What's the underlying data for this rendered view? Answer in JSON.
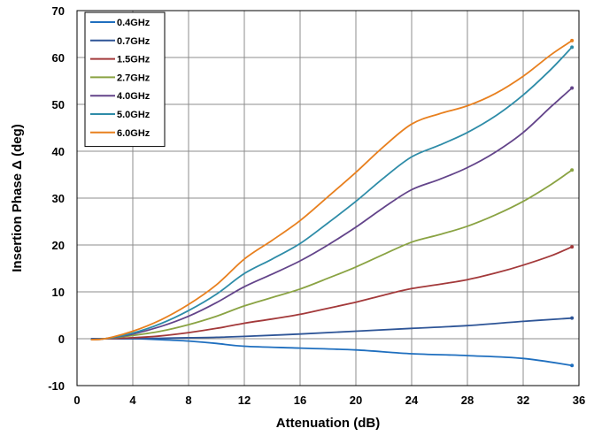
{
  "chart_data": {
    "type": "line",
    "xlabel": "Attenuation  (dB)",
    "ylabel": "Insertion Phase Δ (deg)",
    "xlim": [
      0,
      36
    ],
    "ylim": [
      -10,
      70
    ],
    "xticks": [
      0,
      4,
      8,
      12,
      16,
      20,
      24,
      28,
      32,
      36
    ],
    "yticks": [
      -10,
      0,
      10,
      20,
      30,
      40,
      50,
      60,
      70
    ],
    "xtick_labels": [
      "0",
      "4",
      "8",
      "12",
      "16",
      "20",
      "24",
      "28",
      "32",
      "36"
    ],
    "ytick_labels": [
      "-10",
      "0",
      "10",
      "20",
      "30",
      "40",
      "50",
      "60",
      "70"
    ],
    "grid": true,
    "legend_position": "top-left",
    "series": [
      {
        "name": "0.4GHz",
        "color": "#1f6fbf",
        "x": [
          1,
          2,
          4,
          6,
          8,
          10,
          12,
          16,
          20,
          24,
          28,
          32,
          35.5
        ],
        "y": [
          0,
          0,
          0,
          -0.2,
          -0.5,
          -1,
          -1.6,
          -2,
          -2.4,
          -3.2,
          -3.6,
          -4.2,
          -5.7
        ]
      },
      {
        "name": "0.7GHz",
        "color": "#2e5597",
        "x": [
          1,
          2,
          4,
          6,
          8,
          10,
          12,
          16,
          20,
          24,
          28,
          32,
          35.5
        ],
        "y": [
          0,
          0,
          0,
          0.1,
          0.2,
          0.3,
          0.5,
          1,
          1.6,
          2.2,
          2.8,
          3.7,
          4.4
        ]
      },
      {
        "name": "1.5GHz",
        "color": "#a3393a",
        "x": [
          1,
          2,
          4,
          6,
          8,
          10,
          12,
          14,
          16,
          18,
          20,
          22,
          24,
          26,
          28,
          30,
          32,
          34,
          35.5
        ],
        "y": [
          -0.2,
          0,
          0.2,
          0.6,
          1.3,
          2.2,
          3.3,
          4.2,
          5.2,
          6.5,
          7.8,
          9.3,
          10.7,
          11.6,
          12.6,
          14,
          15.7,
          17.7,
          19.6
        ]
      },
      {
        "name": "2.7GHz",
        "color": "#8aa343",
        "x": [
          1,
          2,
          4,
          6,
          8,
          10,
          12,
          14,
          16,
          18,
          20,
          22,
          24,
          26,
          28,
          30,
          32,
          34,
          35.5
        ],
        "y": [
          -0.2,
          0,
          0.7,
          1.6,
          3,
          4.8,
          7,
          8.8,
          10.6,
          12.9,
          15.3,
          18,
          20.6,
          22.2,
          24,
          26.4,
          29.3,
          32.9,
          36
        ]
      },
      {
        "name": "4.0GHz",
        "color": "#63448a",
        "x": [
          1,
          2,
          4,
          6,
          8,
          10,
          12,
          14,
          16,
          18,
          20,
          22,
          24,
          26,
          28,
          30,
          32,
          34,
          35.5
        ],
        "y": [
          -0.2,
          0,
          1,
          2.6,
          4.8,
          7.7,
          11.1,
          13.8,
          16.6,
          20,
          23.8,
          28,
          31.8,
          34,
          36.5,
          39.8,
          44,
          49.5,
          53.5
        ]
      },
      {
        "name": "5.0GHz",
        "color": "#2e8ca8",
        "x": [
          1,
          2,
          4,
          6,
          8,
          10,
          12,
          14,
          16,
          18,
          20,
          22,
          24,
          26,
          28,
          30,
          32,
          34,
          35.5
        ],
        "y": [
          -0.2,
          0,
          1.2,
          3.2,
          6,
          9.5,
          13.9,
          17,
          20.3,
          24.7,
          29.3,
          34.3,
          38.8,
          41.3,
          44,
          47.5,
          52,
          57.5,
          62.2
        ]
      },
      {
        "name": "6.0GHz",
        "color": "#e8801f",
        "x": [
          1,
          2,
          4,
          6,
          8,
          10,
          12,
          14,
          16,
          18,
          20,
          22,
          24,
          26,
          28,
          30,
          32,
          34,
          35.5
        ],
        "y": [
          -0.2,
          0,
          1.6,
          4,
          7.3,
          11.5,
          17,
          21,
          25.2,
          30.3,
          35.5,
          41,
          45.8,
          48,
          49.7,
          52.3,
          56,
          60.6,
          63.6
        ]
      }
    ]
  }
}
